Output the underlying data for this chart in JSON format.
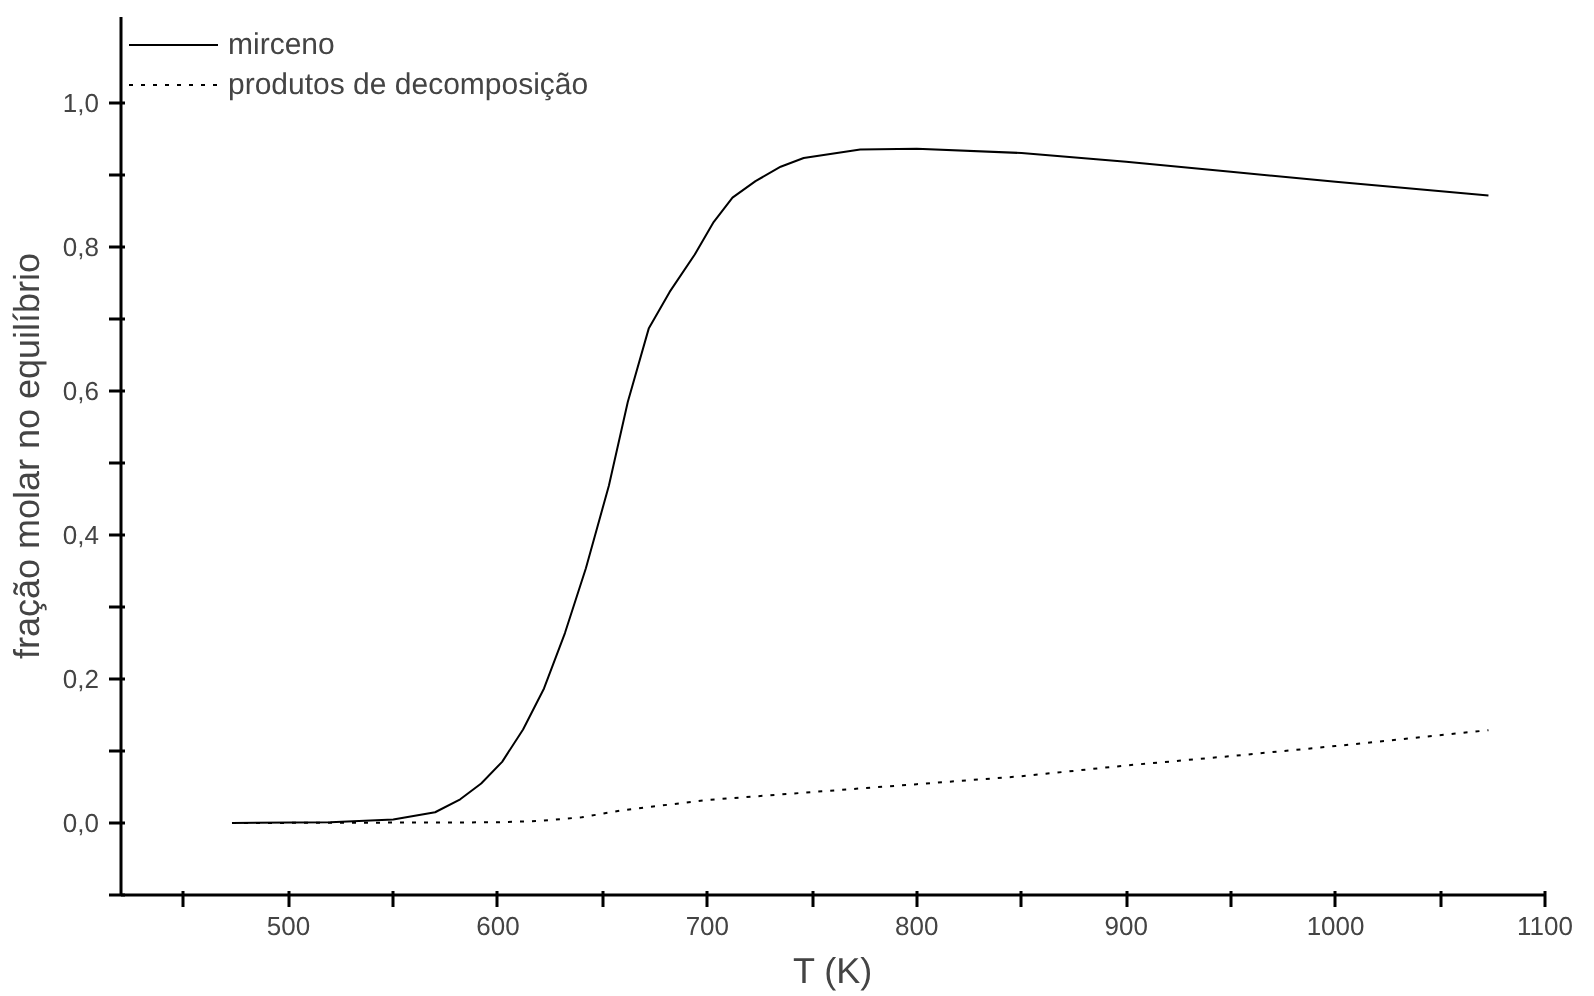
{
  "chart_data": {
    "type": "line",
    "xlabel": "T (K)",
    "ylabel": "fração molar no equilíbrio",
    "xlim": [
      420,
      1100
    ],
    "ylim": [
      -0.1,
      1.12
    ],
    "xticks": [
      {
        "value": 450,
        "label": null
      },
      500,
      {
        "value": 550,
        "label": null
      },
      600,
      {
        "value": 650,
        "label": null
      },
      700,
      {
        "value": 750,
        "label": null
      },
      800,
      {
        "value": 850,
        "label": null
      },
      900,
      {
        "value": 950,
        "label": null
      },
      1000,
      {
        "value": 1050,
        "label": null
      },
      1100
    ],
    "yticks": [
      {
        "value": -0.1,
        "label": null
      },
      {
        "value": 0,
        "label": "0,0"
      },
      {
        "value": 0.1,
        "label": null
      },
      {
        "value": 0.2,
        "label": "0,2"
      },
      {
        "value": 0.3,
        "label": null
      },
      {
        "value": 0.4,
        "label": "0,4"
      },
      {
        "value": 0.5,
        "label": null
      },
      {
        "value": 0.6,
        "label": "0,6"
      },
      {
        "value": 0.7,
        "label": null
      },
      {
        "value": 0.8,
        "label": "0,8"
      },
      {
        "value": 0.9,
        "label": null
      },
      {
        "value": 1.0,
        "label": "1,0"
      }
    ],
    "grid": false,
    "legend": "top left",
    "series": [
      {
        "name": "mirceno",
        "color": "#000000",
        "line_style": "solid",
        "x": [
          473,
          520,
          550,
          570,
          582,
          592,
          602,
          612,
          622,
          632,
          642,
          653,
          662,
          672,
          682,
          694,
          703,
          712,
          723,
          735,
          746,
          773,
          800,
          850,
          900,
          950,
          1000,
          1073
        ],
        "values": [
          0,
          0.001,
          0.005,
          0.015,
          0.033,
          0.055,
          0.085,
          0.13,
          0.187,
          0.264,
          0.354,
          0.469,
          0.585,
          0.687,
          0.738,
          0.79,
          0.835,
          0.869,
          0.892,
          0.912,
          0.924,
          0.936,
          0.937,
          0.931,
          0.919,
          0.905,
          0.891,
          0.872
        ]
      },
      {
        "name": "produtos de decomposição",
        "color": "#000000",
        "line_style": "dotted",
        "x": [
          473,
          600,
          620,
          640,
          660,
          700,
          750,
          800,
          850,
          900,
          950,
          1000,
          1073
        ],
        "values": [
          0,
          0.001,
          0.003,
          0.008,
          0.018,
          0.032,
          0.043,
          0.054,
          0.065,
          0.08,
          0.093,
          0.107,
          0.129
        ]
      }
    ]
  }
}
